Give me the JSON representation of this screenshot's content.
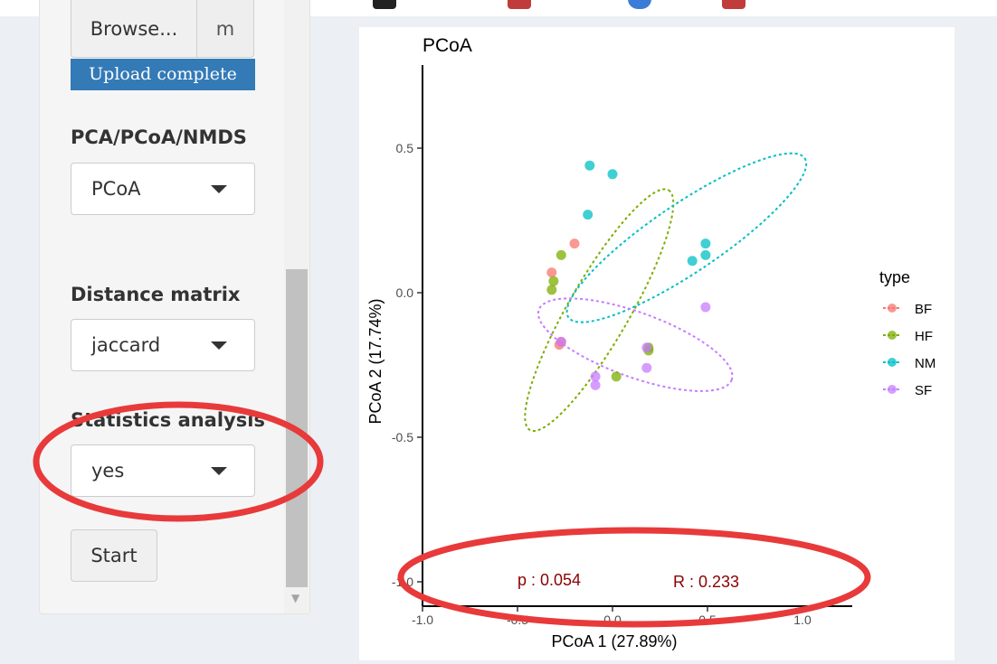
{
  "colors": {
    "BF": "#f8766d",
    "HF": "#7cae00",
    "NM": "#00bfc4",
    "SF": "#c77cff",
    "highlight": "#e83a3a",
    "stat_text": "#8b0000",
    "upload_bar": "#337ab7"
  },
  "sidebar": {
    "browse_label": "Browse...",
    "file_name": "m",
    "upload_status": "Upload complete",
    "method_label": "PCA/PCoA/NMDS",
    "method_value": "PCoA",
    "distance_label": "Distance matrix",
    "distance_value": "jaccard",
    "stats_label": "Statistics analysis",
    "stats_value": "yes",
    "start_label": "Start",
    "scroll_arrow": "▼"
  },
  "plot": {
    "stat_p": "p : 0.054",
    "stat_r": "R : 0.233"
  },
  "chart_data": {
    "type": "scatter",
    "title": "PCoA",
    "xlabel": "PCoA 1 (27.89%)",
    "ylabel": "PCoA 2 (17.74%)",
    "xlim": [
      -1.0,
      1.0
    ],
    "ylim": [
      -1.0,
      0.6
    ],
    "xticks": [
      -1.0,
      -0.5,
      0.0,
      0.5,
      1.0
    ],
    "xtick_labels": [
      "-1.0",
      "-0.5",
      "0.0",
      "0.5",
      "1.0"
    ],
    "yticks": [
      -1.0,
      -0.5,
      0.0,
      0.5
    ],
    "ytick_labels": [
      "-1.0",
      "-0.5",
      "0.0",
      "0.5"
    ],
    "legend_title": "type",
    "legend_position": "right",
    "grid": false,
    "series": [
      {
        "name": "BF",
        "points": [
          [
            -0.32,
            0.07
          ],
          [
            -0.2,
            0.17
          ],
          [
            -0.28,
            -0.18
          ],
          [
            -0.27,
            -0.17
          ]
        ],
        "ellipse": {
          "cx": 0.0,
          "cy": 0.0,
          "rx": 0.0,
          "ry": 0.0,
          "angle": 0,
          "visible": false
        }
      },
      {
        "name": "HF",
        "points": [
          [
            -0.32,
            0.01
          ],
          [
            -0.31,
            0.04
          ],
          [
            -0.27,
            0.13
          ],
          [
            0.02,
            -0.29
          ],
          [
            0.19,
            -0.2
          ],
          [
            0.19,
            -0.19
          ]
        ],
        "ellipse": {
          "cx": -0.07,
          "cy": -0.06,
          "rx": 0.73,
          "ry": 0.16,
          "angle": -60,
          "visible": true
        }
      },
      {
        "name": "NM",
        "points": [
          [
            -0.12,
            0.44
          ],
          [
            0.0,
            0.41
          ],
          [
            -0.13,
            0.27
          ],
          [
            0.42,
            0.11
          ],
          [
            0.49,
            0.17
          ],
          [
            0.49,
            0.13
          ]
        ],
        "ellipse": {
          "cx": 0.39,
          "cy": 0.19,
          "rx": 0.75,
          "ry": 0.18,
          "angle": -34,
          "visible": true
        }
      },
      {
        "name": "SF",
        "points": [
          [
            -0.27,
            -0.17
          ],
          [
            -0.09,
            -0.29
          ],
          [
            -0.09,
            -0.32
          ],
          [
            0.18,
            -0.19
          ],
          [
            0.18,
            -0.26
          ],
          [
            0.49,
            -0.05
          ]
        ],
        "ellipse": {
          "cx": 0.12,
          "cy": -0.18,
          "rx": 0.54,
          "ry": 0.17,
          "angle": 20,
          "visible": true
        }
      }
    ]
  }
}
